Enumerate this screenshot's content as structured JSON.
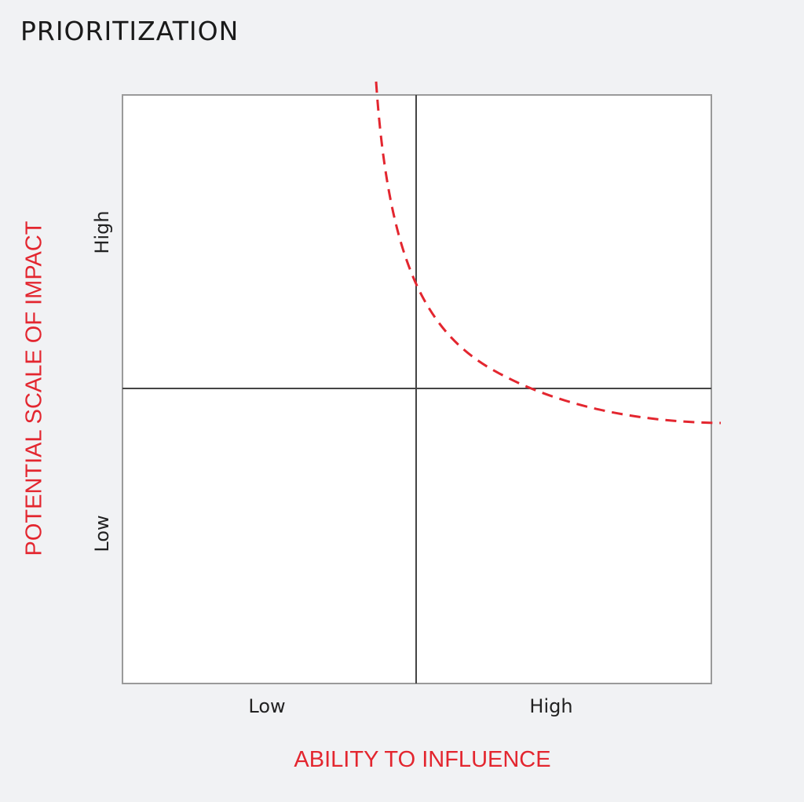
{
  "title": "PRIORITIZATION",
  "x_axis": {
    "title": "ABILITY TO INFLUENCE",
    "low_label": "Low",
    "high_label": "High"
  },
  "y_axis": {
    "title": "POTENTIAL SCALE OF IMPACT",
    "low_label": "Low",
    "high_label": "High"
  },
  "colors": {
    "accent": "#e3262f",
    "background": "#f1f2f4",
    "quadrant_fill": "#ffffff",
    "grid_line": "#444444",
    "frame": "#9a9a9a"
  },
  "curve": {
    "style": "dashed",
    "shape": "convex-hyperbolic"
  }
}
